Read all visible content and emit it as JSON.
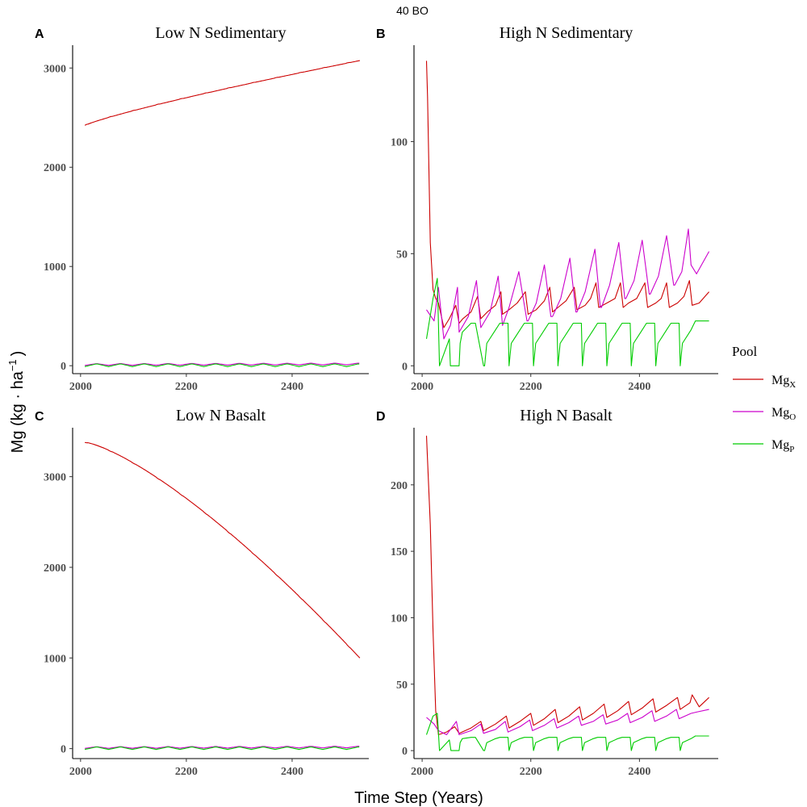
{
  "figure": {
    "title": "40 BO",
    "xlabel": "Time Step (Years)",
    "ylabel_main": "Mg (kg · ha",
    "ylabel_sup": "−1",
    "ylabel_close": ")"
  },
  "legend": {
    "title": "Pool",
    "items": [
      {
        "base": "Mg",
        "sub": "X",
        "color": "#cc0000"
      },
      {
        "base": "Mg",
        "sub": "O",
        "color": "#cc00cc"
      },
      {
        "base": "Mg",
        "sub": "P",
        "color": "#00cc00"
      }
    ]
  },
  "chart_data": [
    {
      "type": "line",
      "tag": "A",
      "title": "Low N Sedimentary",
      "xlim": [
        1985,
        2545
      ],
      "ylim": [
        -80,
        3230
      ],
      "xticks": [
        2000,
        2200,
        2400
      ],
      "yticks": [
        0,
        1000,
        2000,
        3000
      ],
      "series": [
        {
          "name": "MgX",
          "color": "#cc0000",
          "kind": "trend",
          "start": 2420,
          "end": 3075,
          "curve": 0.85,
          "step_amp": 8
        },
        {
          "name": "MgO",
          "color": "#cc00cc",
          "kind": "sawtooth",
          "base": 12,
          "amp": 18,
          "trend": 6
        },
        {
          "name": "MgP",
          "color": "#00cc00",
          "kind": "sawtooth",
          "base": 5,
          "amp": 28,
          "trend": 0
        }
      ]
    },
    {
      "type": "line",
      "tag": "B",
      "title": "High N Sedimentary",
      "xlim": [
        1985,
        2545
      ],
      "ylim": [
        -3.5,
        143
      ],
      "xticks": [
        2000,
        2200,
        2400
      ],
      "yticks": [
        0,
        50,
        100
      ],
      "series": [
        {
          "name": "MgX",
          "color": "#cc0000",
          "kind": "points",
          "x": [
            2008,
            2010,
            2015,
            2020,
            2025,
            2030,
            2040,
            2050,
            2062,
            2068,
            2075,
            2090,
            2102,
            2108,
            2120,
            2135,
            2145,
            2148,
            2160,
            2175,
            2190,
            2195,
            2210,
            2225,
            2235,
            2240,
            2250,
            2265,
            2280,
            2285,
            2300,
            2310,
            2320,
            2325,
            2340,
            2355,
            2365,
            2370,
            2380,
            2395,
            2410,
            2415,
            2430,
            2440,
            2450,
            2455,
            2470,
            2482,
            2492,
            2497,
            2510,
            2528
          ],
          "y": [
            136,
            120,
            55,
            34,
            30,
            28,
            17,
            21,
            27,
            19,
            21,
            24,
            31,
            21,
            24,
            27,
            33,
            23,
            25,
            28,
            33,
            23,
            25,
            29,
            35,
            24,
            26,
            29,
            35,
            25,
            27,
            30,
            37,
            26,
            28,
            30,
            37,
            26,
            28,
            30,
            37,
            26,
            28,
            30,
            37,
            26,
            28,
            31,
            38,
            27,
            28,
            33
          ]
        },
        {
          "name": "MgO",
          "color": "#cc00cc",
          "kind": "points",
          "x": [
            2008,
            2022,
            2030,
            2040,
            2052,
            2065,
            2068,
            2085,
            2100,
            2108,
            2125,
            2140,
            2148,
            2160,
            2178,
            2193,
            2195,
            2210,
            2225,
            2237,
            2240,
            2255,
            2272,
            2283,
            2285,
            2300,
            2318,
            2328,
            2330,
            2345,
            2362,
            2373,
            2375,
            2390,
            2405,
            2418,
            2420,
            2435,
            2450,
            2463,
            2465,
            2478,
            2490,
            2495,
            2505,
            2528
          ],
          "y": [
            25,
            20,
            35,
            12,
            18,
            35,
            15,
            22,
            38,
            17,
            24,
            40,
            18,
            26,
            42,
            20,
            20,
            28,
            45,
            22,
            22,
            30,
            48,
            24,
            24,
            33,
            52,
            26,
            26,
            36,
            55,
            30,
            30,
            38,
            56,
            32,
            32,
            40,
            58,
            36,
            36,
            42,
            61,
            45,
            41,
            51
          ]
        },
        {
          "name": "MgP",
          "color": "#00cc00",
          "kind": "points",
          "x": [
            2008,
            2020,
            2028,
            2032,
            2050,
            2052,
            2068,
            2070,
            2074,
            2090,
            2098,
            2113,
            2115,
            2119,
            2135,
            2143,
            2158,
            2160,
            2164,
            2180,
            2188,
            2203,
            2205,
            2209,
            2225,
            2233,
            2248,
            2250,
            2254,
            2270,
            2278,
            2293,
            2295,
            2299,
            2315,
            2323,
            2338,
            2340,
            2344,
            2360,
            2368,
            2383,
            2385,
            2389,
            2405,
            2413,
            2428,
            2430,
            2434,
            2450,
            2458,
            2473,
            2475,
            2479,
            2495,
            2503,
            2528
          ],
          "y": [
            12,
            30,
            39,
            0,
            12,
            0,
            0,
            10,
            15,
            19,
            19,
            0,
            0,
            10,
            16,
            19,
            19,
            0,
            10,
            16,
            19,
            19,
            0,
            10,
            16,
            19,
            19,
            0,
            10,
            16,
            19,
            19,
            0,
            10,
            16,
            19,
            19,
            0,
            10,
            16,
            19,
            19,
            0,
            10,
            16,
            19,
            19,
            0,
            10,
            16,
            19,
            19,
            0,
            10,
            16,
            20,
            20
          ]
        }
      ]
    },
    {
      "type": "line",
      "tag": "C",
      "title": "Low N Basalt",
      "xlim": [
        1985,
        2545
      ],
      "ylim": [
        -110,
        3540
      ],
      "xticks": [
        2000,
        2200,
        2400
      ],
      "yticks": [
        0,
        1000,
        2000,
        3000
      ],
      "series": [
        {
          "name": "MgX",
          "color": "#cc0000",
          "kind": "trend",
          "start": 3380,
          "end": 1000,
          "curve": 1.35,
          "step_amp": 10
        },
        {
          "name": "MgO",
          "color": "#cc00cc",
          "kind": "sawtooth",
          "base": 12,
          "amp": 18,
          "trend": 6
        },
        {
          "name": "MgP",
          "color": "#00cc00",
          "kind": "sawtooth",
          "base": 5,
          "amp": 28,
          "trend": 0
        }
      ]
    },
    {
      "type": "line",
      "tag": "D",
      "title": "High N Basalt",
      "xlim": [
        1985,
        2545
      ],
      "ylim": [
        -6,
        243
      ],
      "xticks": [
        2000,
        2200,
        2400
      ],
      "yticks": [
        0,
        50,
        100,
        150,
        200
      ],
      "series": [
        {
          "name": "MgX",
          "color": "#cc0000",
          "kind": "points",
          "x": [
            2008,
            2015,
            2020,
            2025,
            2030,
            2045,
            2060,
            2068,
            2090,
            2108,
            2113,
            2135,
            2155,
            2160,
            2180,
            2200,
            2205,
            2225,
            2245,
            2250,
            2270,
            2290,
            2295,
            2315,
            2335,
            2340,
            2360,
            2380,
            2385,
            2405,
            2425,
            2430,
            2450,
            2470,
            2475,
            2493,
            2497,
            2510,
            2528
          ],
          "y": [
            237,
            170,
            90,
            30,
            12,
            14,
            18,
            13,
            17,
            22,
            15,
            20,
            26,
            17,
            22,
            28,
            19,
            24,
            31,
            21,
            26,
            33,
            23,
            28,
            35,
            25,
            30,
            37,
            27,
            32,
            39,
            29,
            34,
            40,
            31,
            36,
            42,
            33,
            40
          ]
        },
        {
          "name": "MgO",
          "color": "#cc00cc",
          "kind": "points",
          "x": [
            2008,
            2022,
            2030,
            2045,
            2063,
            2068,
            2090,
            2108,
            2113,
            2135,
            2153,
            2158,
            2180,
            2198,
            2203,
            2225,
            2243,
            2248,
            2270,
            2288,
            2293,
            2315,
            2333,
            2338,
            2360,
            2378,
            2383,
            2405,
            2423,
            2428,
            2450,
            2468,
            2473,
            2495,
            2505,
            2528
          ],
          "y": [
            25,
            20,
            15,
            12,
            22,
            12,
            15,
            20,
            13,
            16,
            22,
            14,
            18,
            23,
            15,
            19,
            24,
            17,
            21,
            26,
            19,
            22,
            27,
            20,
            23,
            28,
            21,
            25,
            30,
            22,
            26,
            31,
            24,
            28,
            29,
            31
          ]
        },
        {
          "name": "MgP",
          "color": "#00cc00",
          "kind": "points",
          "x": [
            2008,
            2020,
            2028,
            2032,
            2050,
            2053,
            2068,
            2070,
            2074,
            2090,
            2098,
            2113,
            2115,
            2119,
            2135,
            2143,
            2158,
            2160,
            2164,
            2180,
            2188,
            2203,
            2205,
            2209,
            2225,
            2233,
            2248,
            2250,
            2254,
            2270,
            2278,
            2293,
            2295,
            2299,
            2315,
            2323,
            2338,
            2340,
            2344,
            2360,
            2368,
            2383,
            2385,
            2389,
            2405,
            2413,
            2428,
            2430,
            2434,
            2450,
            2458,
            2473,
            2475,
            2479,
            2495,
            2503,
            2528
          ],
          "y": [
            12,
            26,
            28,
            0,
            8,
            0,
            0,
            6,
            9,
            10,
            10,
            0,
            0,
            6,
            9,
            10,
            10,
            0,
            6,
            9,
            10,
            10,
            0,
            6,
            9,
            10,
            10,
            0,
            6,
            9,
            10,
            10,
            0,
            6,
            9,
            10,
            10,
            0,
            6,
            9,
            10,
            10,
            0,
            6,
            9,
            10,
            10,
            0,
            6,
            9,
            10,
            10,
            0,
            6,
            9,
            11,
            11
          ]
        }
      ]
    }
  ]
}
